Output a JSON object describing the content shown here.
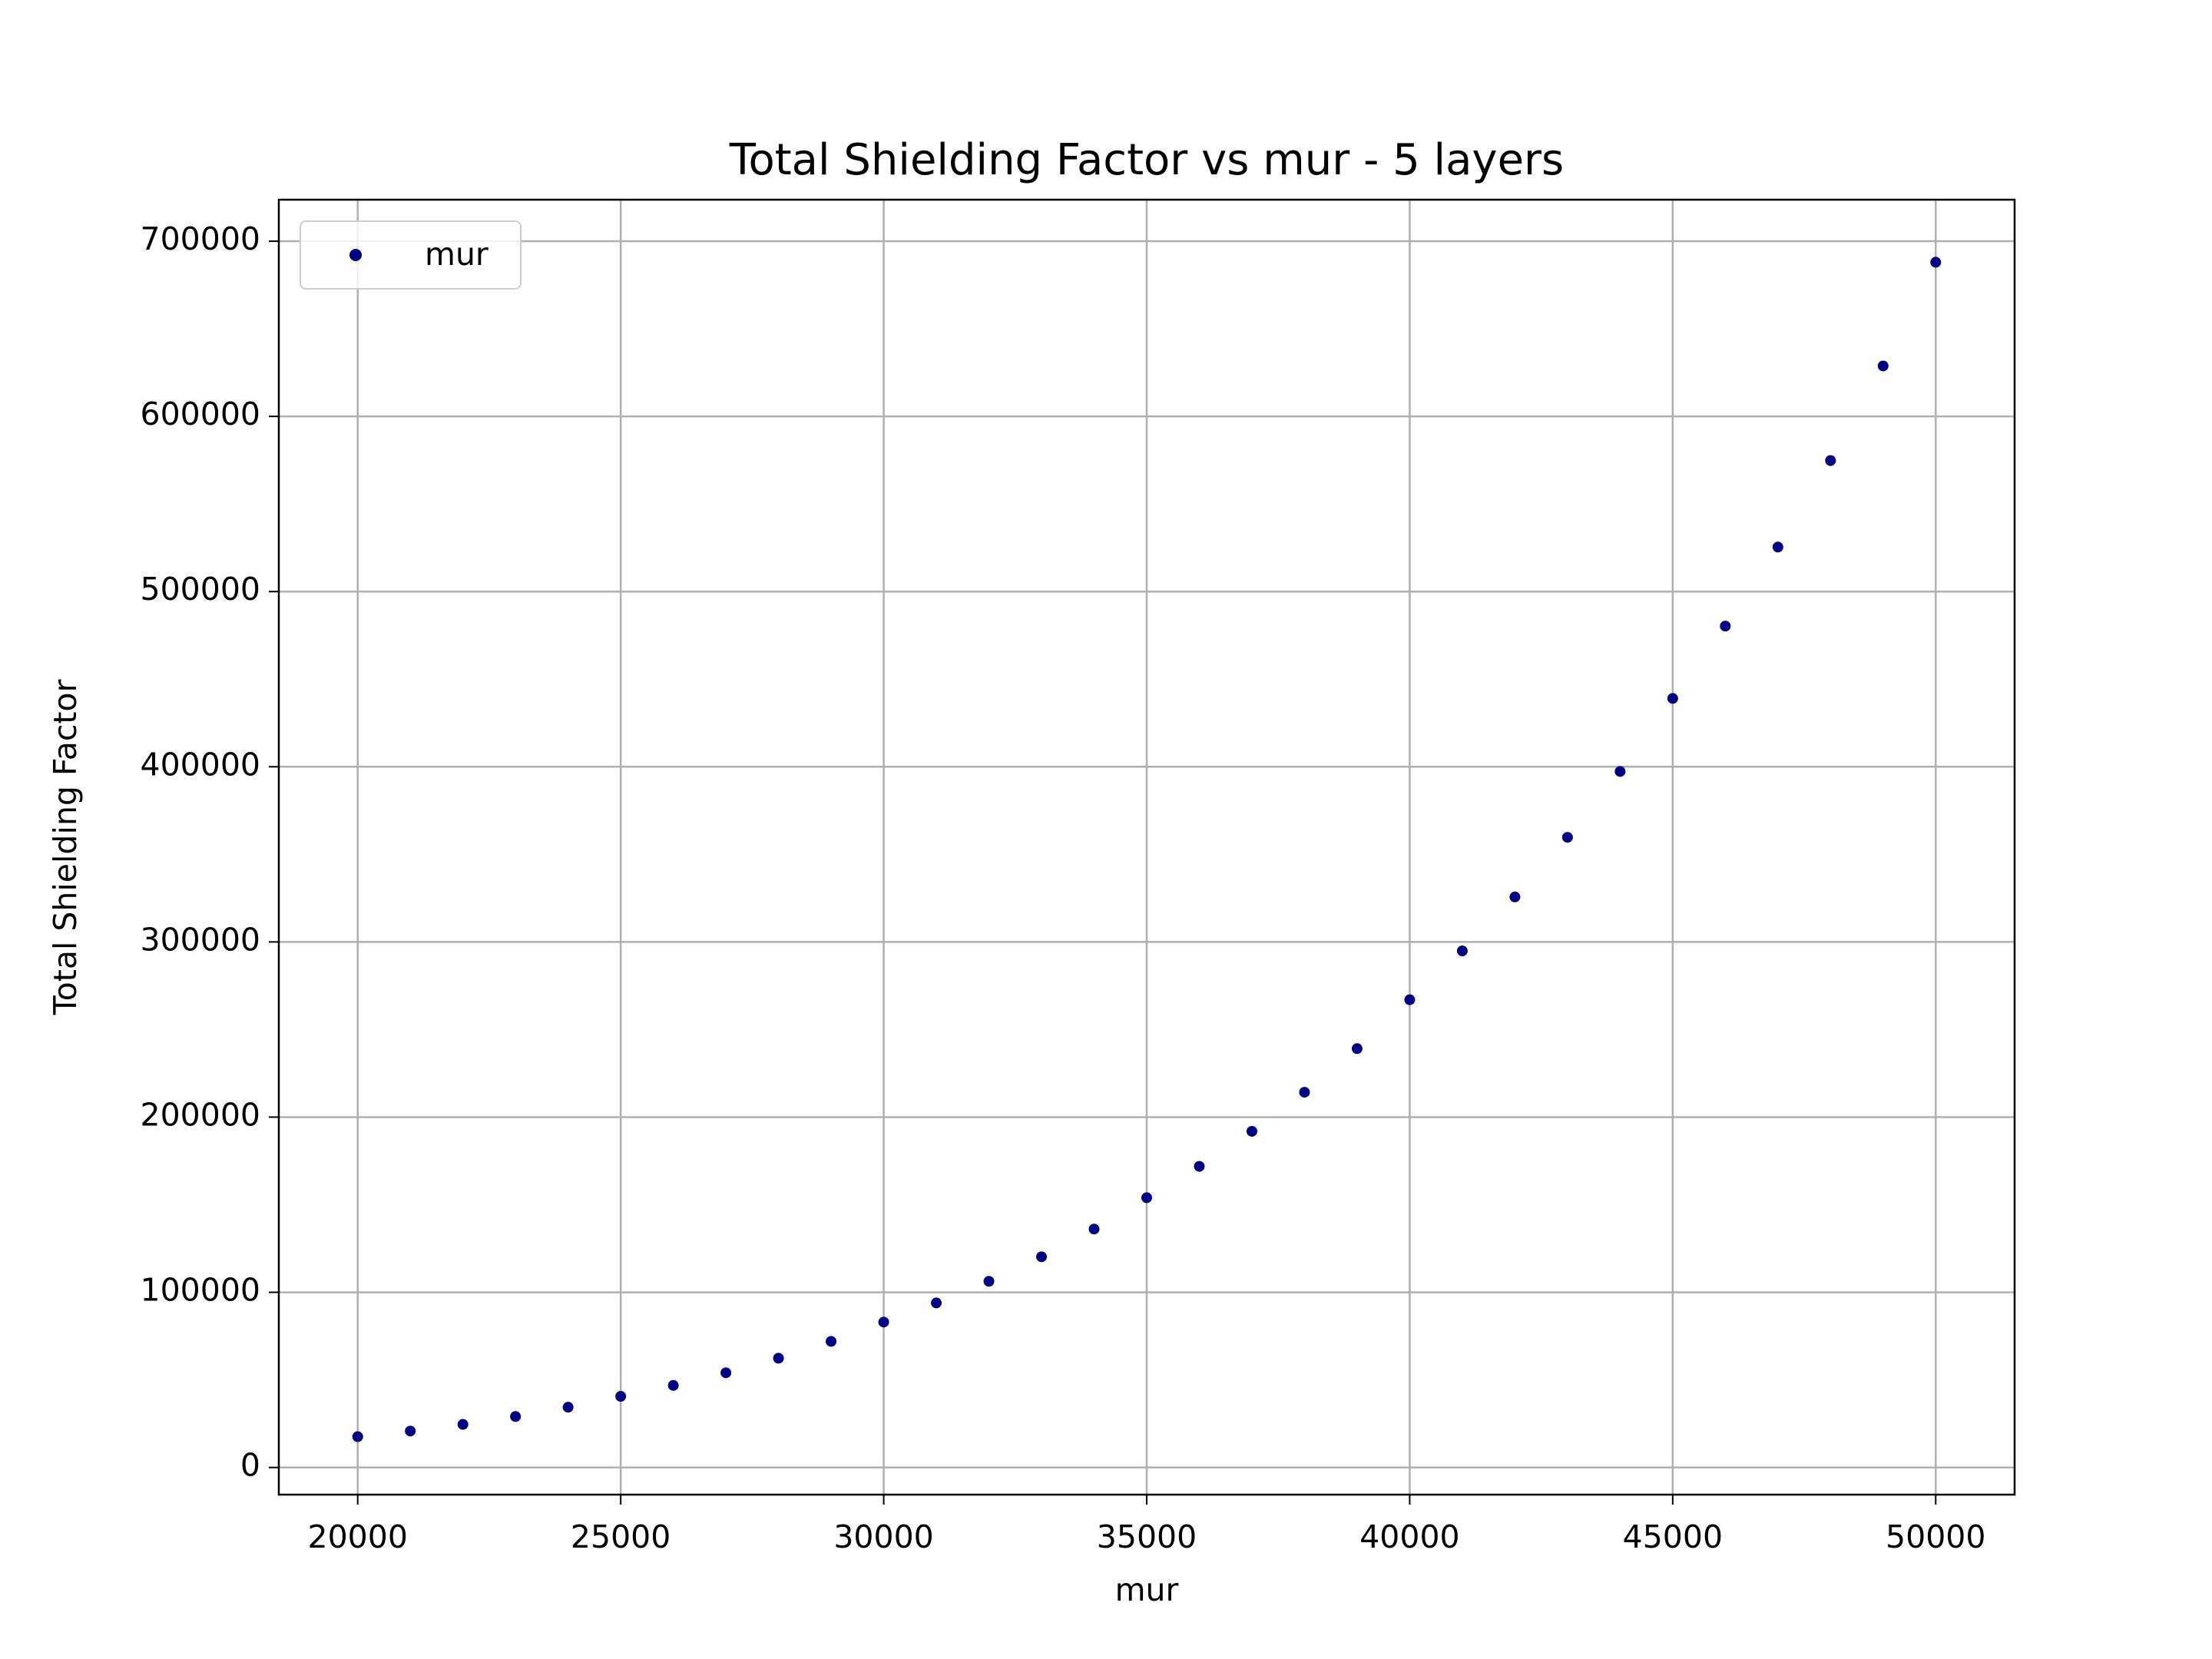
{
  "chart_data": {
    "type": "scatter",
    "title": "Total Shielding Factor vs mur - 5 layers",
    "x_label": "mur",
    "y_label": "Total Shielding Factor",
    "x": [
      20000,
      21000,
      22000,
      23000,
      24000,
      25000,
      26000,
      27000,
      28000,
      29000,
      30000,
      31000,
      32000,
      33000,
      34000,
      35000,
      36000,
      37000,
      38000,
      39000,
      40000,
      41000,
      42000,
      43000,
      44000,
      45000,
      46000,
      47000,
      48000,
      49000,
      50000
    ],
    "series": [
      {
        "name": "mur",
        "color": "#000080",
        "values": [
          17600,
          20800,
          24600,
          29100,
          34400,
          40600,
          46850,
          54060,
          62380,
          71990,
          83000,
          93920,
          106280,
          120270,
          136100,
          154000,
          171900,
          191900,
          214200,
          239100,
          267000,
          294900,
          325700,
          359700,
          397300,
          439000,
          480300,
          525400,
          574800,
          628800,
          688000
        ]
      }
    ],
    "xlim": [
      18500,
      51500
    ],
    "xticks": [
      20000,
      25000,
      30000,
      35000,
      40000,
      45000,
      50000
    ],
    "ylim": [
      -15500,
      723700
    ],
    "yticks": [
      0,
      100000,
      200000,
      300000,
      400000,
      500000,
      600000,
      700000
    ],
    "grid": true,
    "legend": "upper left"
  }
}
